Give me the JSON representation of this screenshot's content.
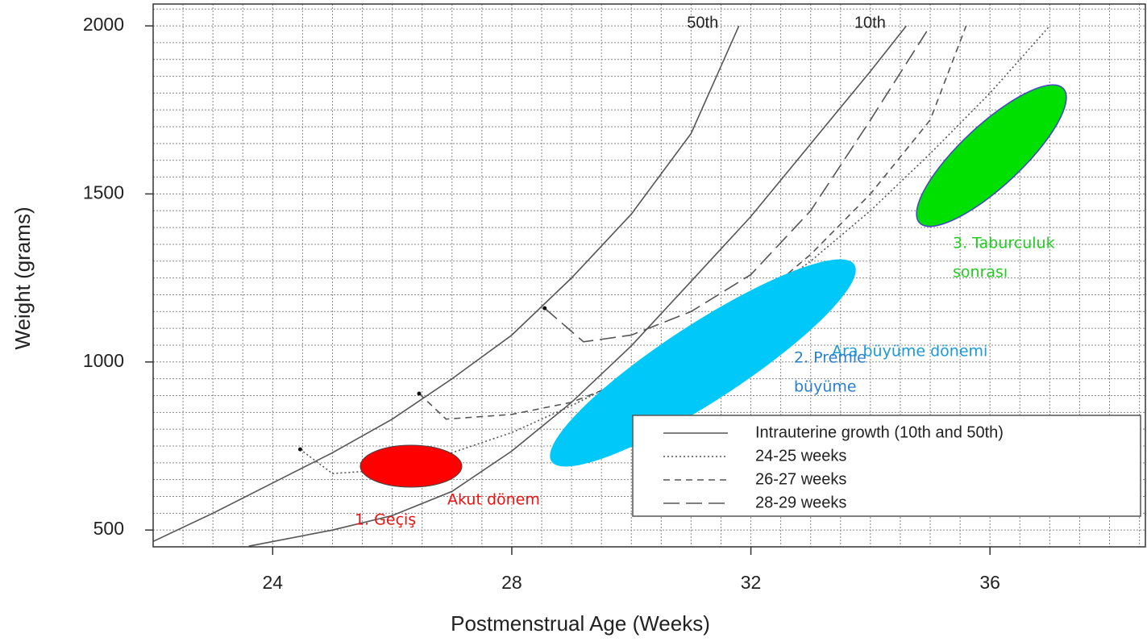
{
  "chart_data": {
    "type": "line",
    "xlabel": "Postmenstrual Age (Weeks)",
    "ylabel": "Weight (grams)",
    "xlim": [
      22,
      38.6
    ],
    "ylim": [
      450,
      2065
    ],
    "xticks": [
      24,
      28,
      32,
      36
    ],
    "yticks": [
      500,
      1000,
      1500,
      2000
    ],
    "grid": true,
    "minor_grid_step_x": 0.5,
    "minor_grid_step_y": 50,
    "legend_position": "lower right",
    "legend_extra": {
      "label": "Intrauterine growth (10th and 50th)",
      "dash": "solid"
    },
    "series": [
      {
        "name": "50th",
        "color": "#555555",
        "dash": "solid",
        "x": [
          22,
          23,
          24,
          25,
          26,
          27,
          28,
          29,
          30,
          31,
          31.8
        ],
        "values": [
          466,
          550,
          640,
          730,
          830,
          950,
          1080,
          1250,
          1440,
          1680,
          2000
        ]
      },
      {
        "name": "10th",
        "color": "#555555",
        "dash": "solid",
        "x": [
          23.6,
          25,
          26,
          27,
          28,
          29,
          30,
          31,
          32,
          33,
          34,
          34.6
        ],
        "values": [
          452,
          500,
          543,
          615,
          735,
          880,
          1048,
          1240,
          1433,
          1649,
          1865,
          2000
        ]
      },
      {
        "name": "24-25 weeks",
        "color": "#555555",
        "dash": "dotted",
        "x": [
          24.46,
          25,
          26,
          27,
          28,
          29,
          30,
          31,
          32,
          33,
          34,
          35,
          36,
          37
        ],
        "values": [
          740,
          668,
          680,
          730,
          790,
          870,
          960,
          1060,
          1170,
          1300,
          1450,
          1620,
          1800,
          2000
        ]
      },
      {
        "name": "26-27 weeks",
        "color": "#555555",
        "dash": "dashed",
        "x": [
          26.45,
          26.9,
          28,
          29,
          30,
          31,
          32,
          33,
          34,
          35,
          35.6
        ],
        "values": [
          906,
          830,
          844,
          880,
          950,
          1050,
          1170,
          1320,
          1500,
          1720,
          2000
        ]
      },
      {
        "name": "28-29 weeks",
        "color": "#555555",
        "dash": "longdash",
        "x": [
          28.55,
          29.2,
          30,
          31,
          32,
          33,
          34,
          35
        ],
        "values": [
          1160,
          1060,
          1080,
          1150,
          1260,
          1450,
          1720,
          2000
        ]
      }
    ],
    "annotations": [
      {
        "lines": [
          "Akut dönem"
        ],
        "color": "#ee1111"
      },
      {
        "lines": [
          "1. Geçiş"
        ],
        "color": "#ee1111"
      },
      {
        "lines": [
          "Ara büyüme dönemi"
        ],
        "color": "#1a9ad6"
      },
      {
        "lines": [
          "2. Premie",
          "büyüme"
        ],
        "color": "#2a7fd0"
      },
      {
        "lines": [
          "3. Taburculuk",
          "sonrası"
        ],
        "color": "#22cc22"
      }
    ]
  }
}
